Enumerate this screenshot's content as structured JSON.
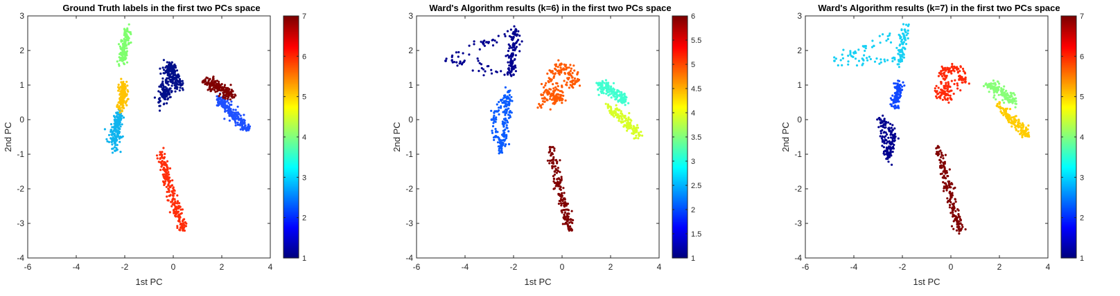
{
  "figure": {
    "xlabel": "1st PC",
    "ylabel": "2nd PC",
    "xticks": [
      "-6",
      "-4",
      "-2",
      "0",
      "2",
      "4"
    ],
    "yticks": [
      "3",
      "2",
      "1",
      "0",
      "-1",
      "-2",
      "-3",
      "-4"
    ],
    "colormap": "jet"
  },
  "chart_data": [
    {
      "type": "scatter",
      "title": "Ground Truth labels in the first two PCs space",
      "xlabel": "1st PC",
      "ylabel": "2nd PC",
      "xlim": [
        -6,
        4
      ],
      "ylim": [
        -4,
        3
      ],
      "colorbar": {
        "range": [
          1,
          7
        ],
        "ticks": [
          "1",
          "2",
          "3",
          "4",
          "5",
          "6",
          "7"
        ]
      },
      "clusters": [
        {
          "label": 1,
          "color": "#000f8a",
          "points": [
            [
              -0.3,
              1.4
            ],
            [
              -0.1,
              1.6
            ],
            [
              0.2,
              1.3
            ],
            [
              -0.5,
              1.0
            ],
            [
              -0.2,
              0.8
            ],
            [
              -0.6,
              0.5
            ],
            [
              0.3,
              1.0
            ],
            [
              0.0,
              1.2
            ]
          ]
        },
        {
          "label": 2,
          "color": "#1e50ff",
          "points": [
            [
              1.9,
              0.6
            ],
            [
              2.3,
              0.3
            ],
            [
              2.7,
              0.0
            ],
            [
              3.1,
              -0.3
            ],
            [
              2.5,
              0.1
            ],
            [
              2.0,
              0.5
            ]
          ]
        },
        {
          "label": 3,
          "color": "#10b4ee",
          "points": [
            [
              -2.5,
              -0.6
            ],
            [
              -2.4,
              -0.2
            ],
            [
              -2.3,
              0.2
            ],
            [
              -2.4,
              -0.9
            ],
            [
              -2.2,
              0.0
            ]
          ]
        },
        {
          "label": 4,
          "color": "#7fff6e",
          "points": [
            [
              -1.9,
              2.6
            ],
            [
              -2.0,
              2.2
            ],
            [
              -2.1,
              1.7
            ],
            [
              -2.0,
              1.9
            ]
          ]
        },
        {
          "label": 5,
          "color": "#ffc300",
          "points": [
            [
              -2.1,
              1.0
            ],
            [
              -2.0,
              0.7
            ],
            [
              -2.2,
              0.3
            ],
            [
              -2.0,
              0.9
            ]
          ]
        },
        {
          "label": 6,
          "color": "#ff2e0a",
          "points": [
            [
              -0.5,
              -1.0
            ],
            [
              -0.3,
              -1.6
            ],
            [
              0.0,
              -2.2
            ],
            [
              0.2,
              -2.8
            ],
            [
              0.4,
              -3.2
            ],
            [
              -0.2,
              -1.9
            ]
          ]
        },
        {
          "label": 7,
          "color": "#800000",
          "points": [
            [
              1.3,
              1.1
            ],
            [
              1.7,
              1.0
            ],
            [
              2.1,
              0.85
            ],
            [
              2.5,
              0.65
            ],
            [
              1.9,
              0.95
            ]
          ]
        }
      ]
    },
    {
      "type": "scatter",
      "title": "Ward's Algorithm results (k=6) in the first two PCs space",
      "xlabel": "1st PC",
      "ylabel": "2nd PC",
      "xlim": [
        -6,
        4
      ],
      "ylim": [
        -4,
        3
      ],
      "colorbar": {
        "range": [
          1,
          6
        ],
        "ticks": [
          "1",
          "1.5",
          "2",
          "2.5",
          "3",
          "3.5",
          "4",
          "4.5",
          "5",
          "5.5",
          "6"
        ]
      },
      "clusters": [
        {
          "label": 1,
          "color": "#00008f",
          "points": [
            [
              -1.9,
              2.6
            ],
            [
              -2.0,
              2.2
            ],
            [
              -2.1,
              1.7
            ],
            [
              -2.0,
              1.3
            ],
            [
              -4.8,
              1.7
            ]
          ]
        },
        {
          "label": 2,
          "color": "#0a5cff",
          "points": [
            [
              -2.2,
              0.8
            ],
            [
              -2.3,
              0.2
            ],
            [
              -2.4,
              -0.4
            ],
            [
              -2.5,
              -0.9
            ],
            [
              -2.9,
              0.0
            ]
          ]
        },
        {
          "label": 3,
          "color": "#40ffd0",
          "points": [
            [
              1.5,
              1.0
            ],
            [
              1.9,
              0.9
            ],
            [
              2.3,
              0.7
            ],
            [
              2.6,
              0.55
            ]
          ]
        },
        {
          "label": 4,
          "color": "#d8ff28",
          "points": [
            [
              1.9,
              0.4
            ],
            [
              2.4,
              0.1
            ],
            [
              2.8,
              -0.2
            ],
            [
              3.2,
              -0.45
            ]
          ]
        },
        {
          "label": 5,
          "color": "#ff5a00",
          "points": [
            [
              -0.4,
              1.4
            ],
            [
              0.2,
              1.5
            ],
            [
              0.6,
              1.1
            ],
            [
              -0.6,
              0.8
            ],
            [
              0.0,
              0.6
            ],
            [
              -0.9,
              0.4
            ]
          ]
        },
        {
          "label": 6,
          "color": "#800000",
          "points": [
            [
              -0.5,
              -0.8
            ],
            [
              -0.3,
              -1.5
            ],
            [
              0.0,
              -2.2
            ],
            [
              0.2,
              -2.8
            ],
            [
              0.4,
              -3.2
            ]
          ]
        }
      ]
    },
    {
      "type": "scatter",
      "title": "Ward's Algorithm results (k=7) in the first two PCs space",
      "xlabel": "1st PC",
      "ylabel": "2nd PC",
      "xlim": [
        -6,
        4
      ],
      "ylim": [
        -4,
        3
      ],
      "colorbar": {
        "range": [
          1,
          7
        ],
        "ticks": [
          "1",
          "2",
          "3",
          "4",
          "5",
          "6",
          "7"
        ]
      },
      "clusters": [
        {
          "label": 1,
          "color": "#00008f",
          "points": [
            [
              -2.4,
              -0.3
            ],
            [
              -2.5,
              -0.8
            ],
            [
              -2.6,
              -1.1
            ],
            [
              -2.9,
              0.0
            ]
          ]
        },
        {
          "label": 2,
          "color": "#1048ff",
          "points": [
            [
              -2.2,
              0.8
            ],
            [
              -2.3,
              0.4
            ],
            [
              -2.1,
              1.0
            ]
          ]
        },
        {
          "label": 3,
          "color": "#18d0f4",
          "points": [
            [
              -1.9,
              2.6
            ],
            [
              -2.0,
              2.2
            ],
            [
              -2.1,
              1.7
            ],
            [
              -4.8,
              1.7
            ]
          ]
        },
        {
          "label": 4,
          "color": "#88ff78",
          "points": [
            [
              1.5,
              1.0
            ],
            [
              1.9,
              0.9
            ],
            [
              2.3,
              0.7
            ],
            [
              2.6,
              0.55
            ]
          ]
        },
        {
          "label": 5,
          "color": "#ffcc00",
          "points": [
            [
              1.9,
              0.4
            ],
            [
              2.4,
              0.1
            ],
            [
              2.8,
              -0.2
            ],
            [
              3.2,
              -0.45
            ]
          ]
        },
        {
          "label": 6,
          "color": "#ff2a0a",
          "points": [
            [
              -0.4,
              1.4
            ],
            [
              0.2,
              1.5
            ],
            [
              0.6,
              1.1
            ],
            [
              -0.6,
              0.8
            ],
            [
              0.0,
              0.6
            ]
          ]
        },
        {
          "label": 7,
          "color": "#800000",
          "points": [
            [
              -0.5,
              -0.8
            ],
            [
              -0.3,
              -1.5
            ],
            [
              0.0,
              -2.2
            ],
            [
              0.2,
              -2.8
            ],
            [
              0.4,
              -3.2
            ]
          ]
        }
      ]
    }
  ]
}
